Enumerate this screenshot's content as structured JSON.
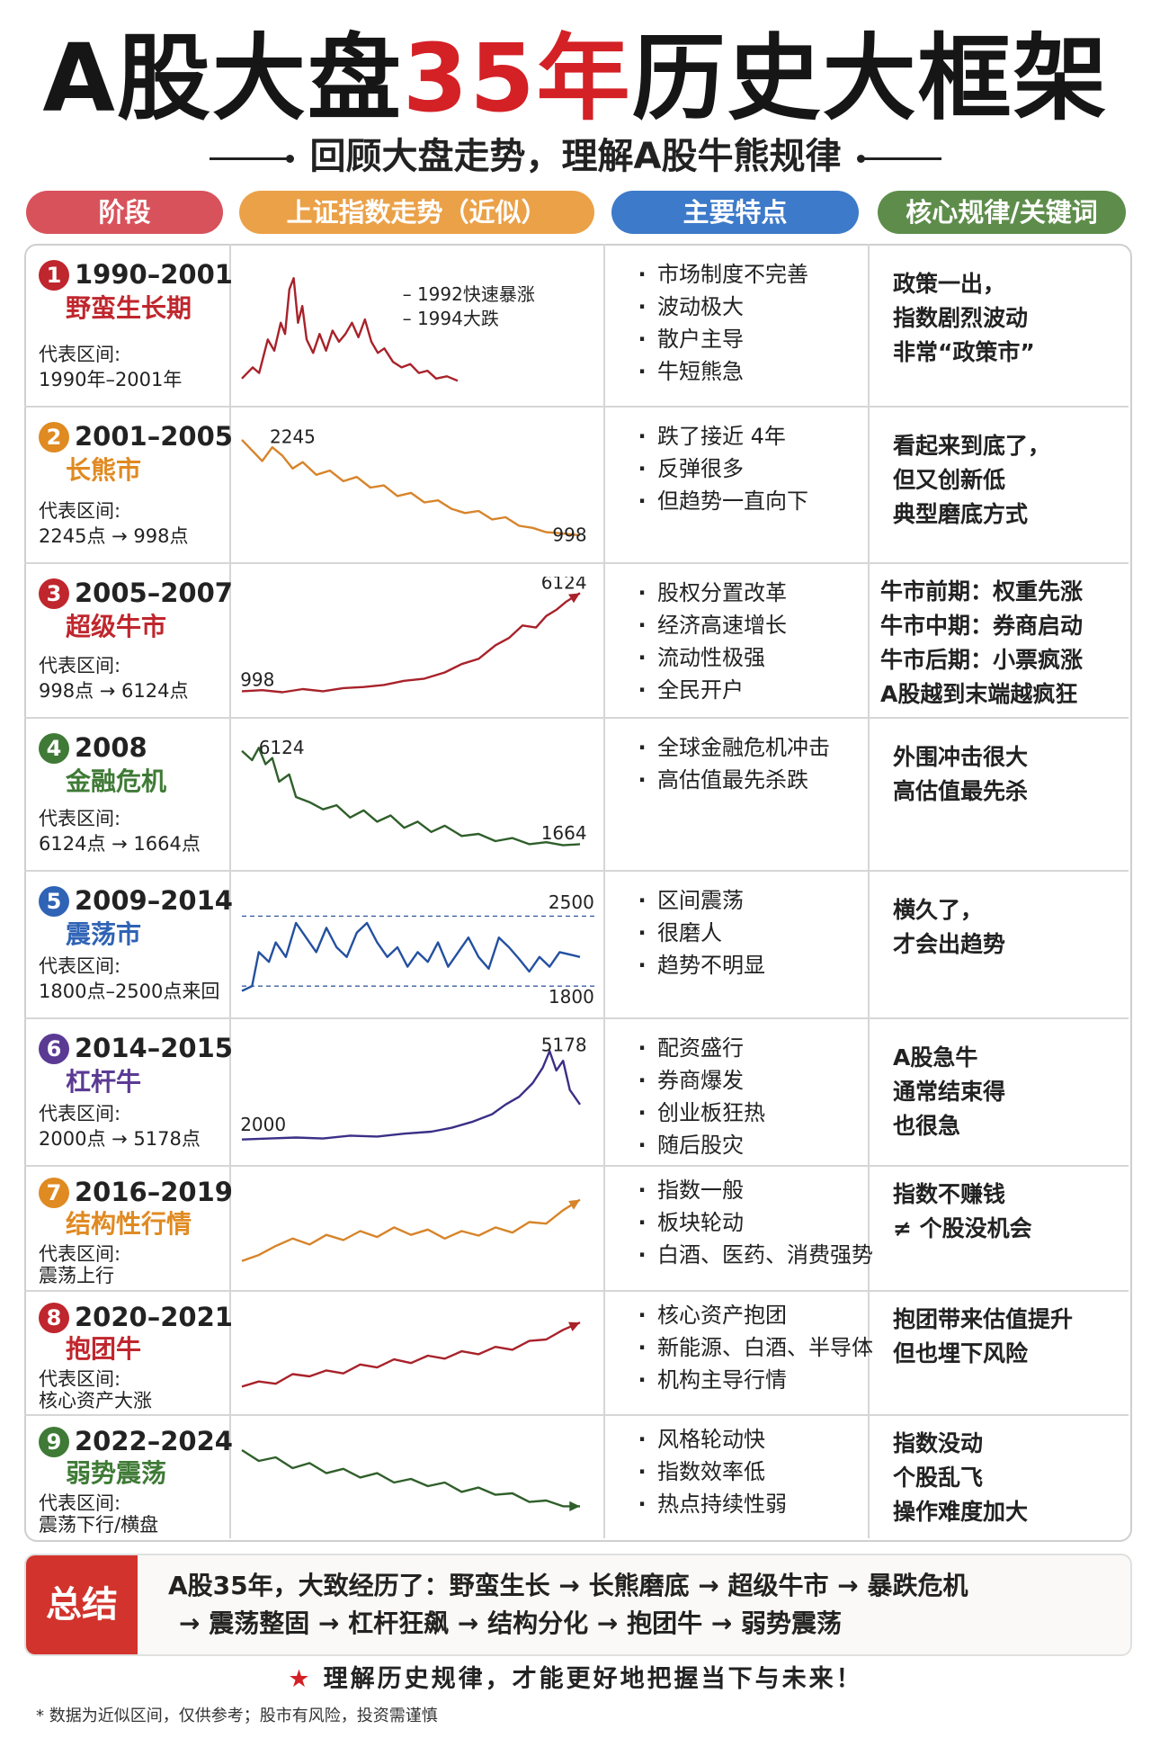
{
  "title": {
    "pre": "A股大盘",
    "highlight": "35年",
    "post": "历史大框架"
  },
  "subtitle": "回顾大盘走势，理解A股牛熊规律",
  "headers": {
    "stage": "阶段",
    "trend": "上证指数走势（近似）",
    "features": "主要特点",
    "rules": "核心规律/关键词"
  },
  "colors": {
    "red": "#c0262d",
    "orange": "#e08a22",
    "green": "#3f7a36",
    "blue": "#2f63b5",
    "purple": "#5b3a94"
  },
  "rows": [
    {
      "num": "1",
      "years": "1990–2001",
      "name": "野蛮生长期",
      "color": "#c0262d",
      "range_label": "代表区间:",
      "range": "1990年–2001年",
      "chart_labels": [
        "– 1992快速暴涨",
        "– 1994大跌"
      ],
      "features": [
        "市场制度不完善",
        "波动极大",
        "散户主导",
        "牛短熊急"
      ],
      "rules": [
        "政策一出，",
        "指数剧烈波动",
        "非常“政策市”"
      ]
    },
    {
      "num": "2",
      "years": "2001–2005",
      "name": "长熊市",
      "color": "#e08a22",
      "range_label": "代表区间:",
      "range": "2245点 → 998点",
      "chart_labels": [
        "2245",
        "998"
      ],
      "features": [
        "跌了接近 4年",
        "反弹很多",
        "但趋势一直向下"
      ],
      "rules": [
        "看起来到底了，",
        "但又创新低",
        "典型磨底方式"
      ]
    },
    {
      "num": "3",
      "years": "2005–2007",
      "name": "超级牛市",
      "color": "#c0262d",
      "range_label": "代表区间:",
      "range": "998点 → 6124点",
      "chart_labels": [
        "998",
        "6124"
      ],
      "features": [
        "股权分置改革",
        "经济高速增长",
        "流动性极强",
        "全民开户"
      ],
      "rules": [
        "牛市前期：权重先涨",
        "牛市中期：券商启动",
        "牛市后期：小票疯涨",
        "A股越到末端越疯狂"
      ]
    },
    {
      "num": "4",
      "years": "2008",
      "name": "金融危机",
      "color": "#3f7a36",
      "range_label": "代表区间:",
      "range": "6124点 → 1664点",
      "chart_labels": [
        "6124",
        "1664"
      ],
      "features": [
        "全球金融危机冲击",
        "高估值最先杀跌"
      ],
      "rules": [
        "外围冲击很大",
        "高估值最先杀"
      ]
    },
    {
      "num": "5",
      "years": "2009–2014",
      "name": "震荡市",
      "color": "#2f63b5",
      "range_label": "代表区间:",
      "range": "1800点–2500点来回",
      "chart_labels": [
        "2500",
        "1800"
      ],
      "features": [
        "区间震荡",
        "很磨人",
        "趋势不明显"
      ],
      "rules": [
        "横久了，",
        "才会出趋势"
      ]
    },
    {
      "num": "6",
      "years": "2014–2015",
      "name": "杠杆牛",
      "color": "#5b3a94",
      "range_label": "代表区间:",
      "range": "2000点 → 5178点",
      "chart_labels": [
        "2000",
        "5178"
      ],
      "features": [
        "配资盛行",
        "券商爆发",
        "创业板狂热",
        "随后股灾"
      ],
      "rules": [
        "A股急牛",
        "通常结束得",
        "也很急"
      ]
    },
    {
      "num": "7",
      "years": "2016–2019",
      "name": "结构性行情",
      "color": "#e08a22",
      "range_label": "代表区间:",
      "range": "震荡上行",
      "chart_labels": [],
      "features": [
        "指数一般",
        "板块轮动",
        "白酒、医药、消费强势"
      ],
      "rules": [
        "指数不赚钱",
        "≠ 个股没机会"
      ]
    },
    {
      "num": "8",
      "years": "2020–2021",
      "name": "抱团牛",
      "color": "#c0262d",
      "range_label": "代表区间:",
      "range": "核心资产大涨",
      "chart_labels": [],
      "features": [
        "核心资产抱团",
        "新能源、白酒、半导体",
        "机构主导行情"
      ],
      "rules": [
        "抱团带来估值提升",
        "但也埋下风险"
      ]
    },
    {
      "num": "9",
      "years": "2022–2024",
      "name": "弱势震荡",
      "color": "#3f7a36",
      "range_label": "代表区间:",
      "range": "震荡下行/横盘",
      "chart_labels": [],
      "features": [
        "风格轮动快",
        "指数效率低",
        "热点持续性弱"
      ],
      "rules": [
        "指数没动",
        "个股乱飞",
        "操作难度加大"
      ]
    }
  ],
  "summary": {
    "tag": "总结",
    "line1": "A股35年，大致经历了：野蛮生长 → 长熊磨底 → 超级牛市 → 暴跌危机",
    "line2": "→  震荡整固  →  杠杆狂飙  →  结构分化  →  抱团牛  →  弱势震荡"
  },
  "cta": {
    "star": "★",
    "text": "理解历史规律，才能更好地把握当下与未来！"
  },
  "note": "* 数据为近似区间，仅供参考；股市有风险，投资需谨慎"
}
